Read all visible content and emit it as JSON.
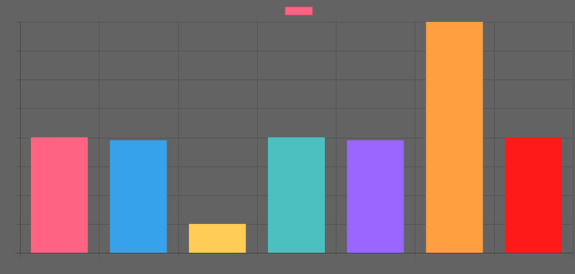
{
  "chart_data": {
    "type": "bar",
    "categories": [
      "",
      "",
      "",
      "",
      "",
      "",
      ""
    ],
    "values": [
      4,
      3.9,
      1,
      4,
      3.9,
      8,
      4
    ],
    "colors": [
      "#ff6384",
      "#36a2eb",
      "#ffcd56",
      "#4bc0c0",
      "#9966ff",
      "#ff9f40",
      "#ff1a1a"
    ],
    "legend": {
      "position": "top-center",
      "swatch_color": "#ff6384",
      "label": ""
    },
    "title": "",
    "xlabel": "",
    "ylabel": "",
    "ylim": [
      0,
      8
    ],
    "y_grid_step": 1,
    "grid": true,
    "grid_color": "#555555",
    "axis_color": "#444444",
    "background": "#636363"
  }
}
